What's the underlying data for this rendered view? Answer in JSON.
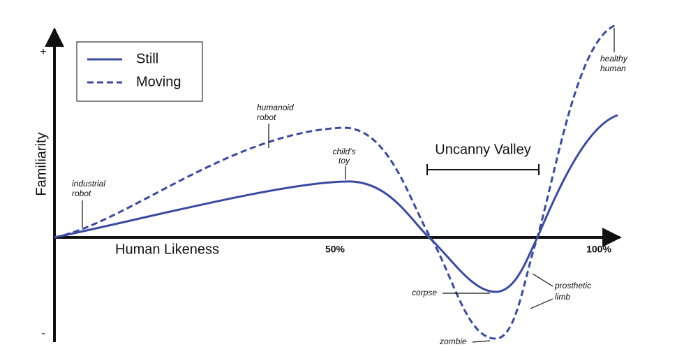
{
  "axes": {
    "y_label": "Familiarity",
    "y_plus": "+",
    "y_minus": "-",
    "x_label": "Human Likeness",
    "x_mid": "50%",
    "x_end": "100%"
  },
  "legend": {
    "items": [
      {
        "label": "Still"
      },
      {
        "label": "Moving"
      }
    ]
  },
  "valley_label": "Uncanny Valley",
  "annotations": [
    {
      "lines": [
        "industrial",
        "robot"
      ]
    },
    {
      "lines": [
        "humanoid",
        "robot"
      ]
    },
    {
      "lines": [
        "child's",
        "toy"
      ]
    },
    {
      "lines": [
        "healthy",
        "human"
      ]
    },
    {
      "lines": [
        "corpse"
      ]
    },
    {
      "lines": [
        "zombie"
      ]
    },
    {
      "lines": [
        "prosthetic",
        "limb"
      ]
    }
  ]
}
